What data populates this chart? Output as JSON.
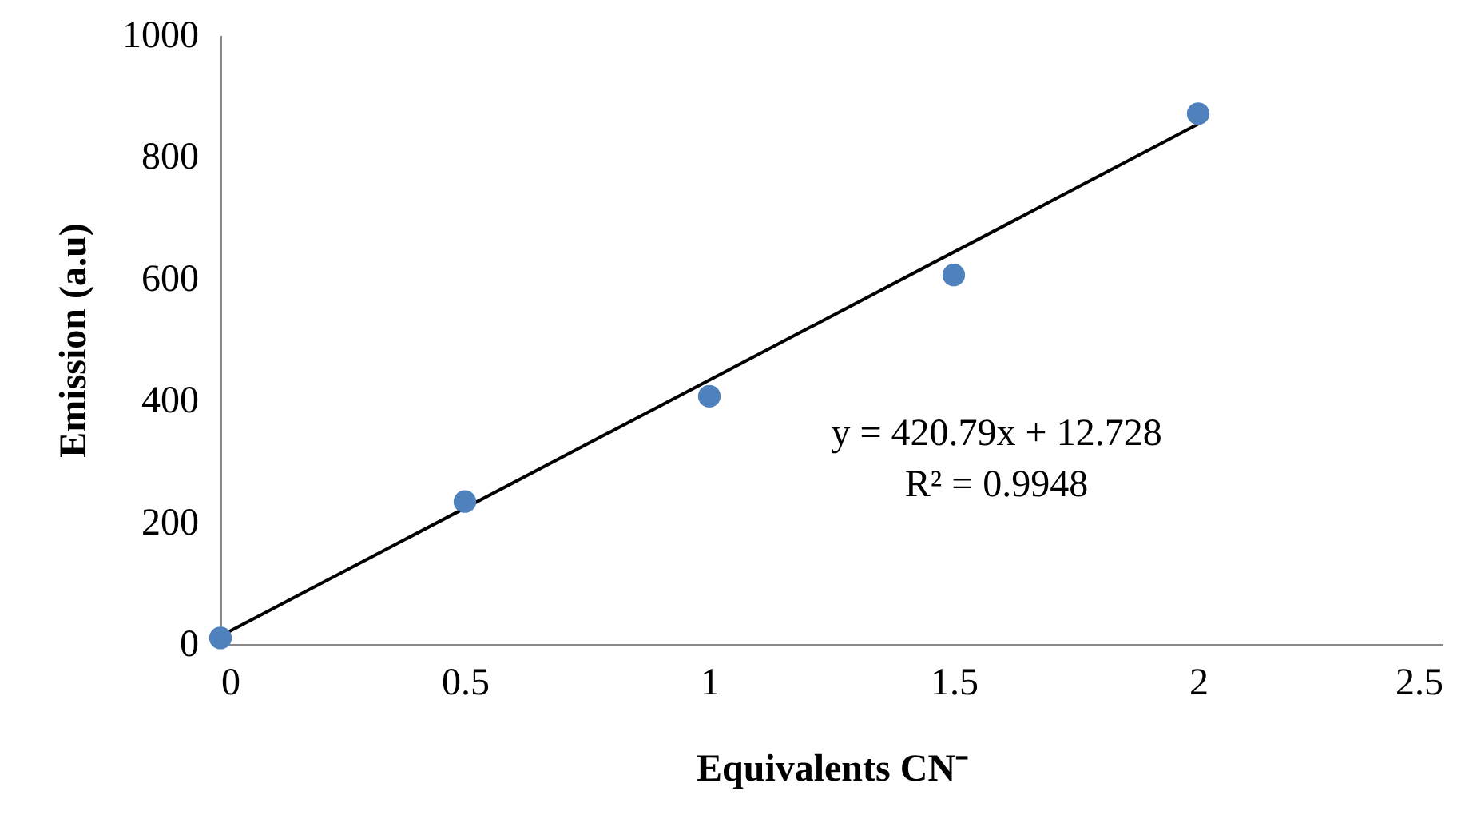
{
  "chart_data": {
    "type": "scatter",
    "xlabel": "Equivalents CN⁻",
    "ylabel": "Emission (a.u)",
    "xlim": [
      0,
      2.5
    ],
    "xticks": [
      0,
      0.5,
      1,
      1.5,
      2,
      2.5
    ],
    "ylim": [
      0,
      1000
    ],
    "yticks": [
      0,
      200,
      400,
      600,
      800,
      1000
    ],
    "series": [
      {
        "color": "#4f81bd",
        "marker": "circle",
        "x": [
          0,
          0.5,
          1,
          1.5,
          2
        ],
        "values": [
          10,
          234,
          407,
          606,
          871
        ]
      },
      {
        "type": "line",
        "color": "#000000",
        "marker": "none",
        "x": [
          0,
          2
        ],
        "values": [
          13,
          854
        ]
      }
    ],
    "annotations": [
      "y = 420.79x + 12.728",
      "R² = 0.9948"
    ]
  }
}
